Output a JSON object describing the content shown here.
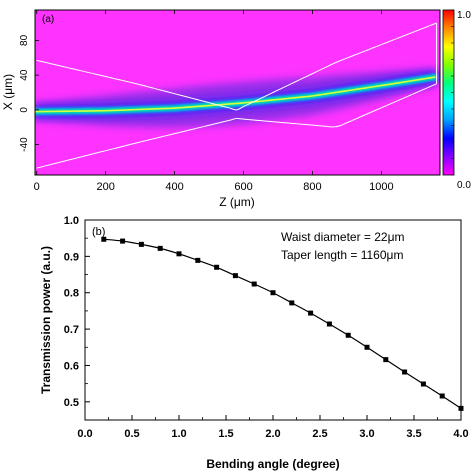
{
  "figure_colors": {
    "background": "#ffffff",
    "field_background": "#ff33ff",
    "axis": "#000000",
    "taper_outline": "#ffffff",
    "colorbar_stops": [
      "#ff00ff",
      "#8800ff",
      "#0000ff",
      "#00a0ff",
      "#00ffff",
      "#00ff80",
      "#80ff00",
      "#ffff00",
      "#ff8800",
      "#ff0000"
    ]
  },
  "chart_data": [
    {
      "panel_label": "(a)",
      "type": "heatmap",
      "title": "",
      "xlabel": "Z (μm)",
      "ylabel": "X (μm)",
      "xlim": [
        -5,
        1170
      ],
      "ylim": [
        -75,
        115
      ],
      "x_ticks": [
        "0",
        "200",
        "400",
        "600",
        "800",
        "1000"
      ],
      "x_tick_values": [
        0,
        200,
        400,
        600,
        800,
        1000
      ],
      "y_ticks": [
        "80",
        "40",
        "0",
        "-40"
      ],
      "y_tick_values": [
        80,
        40,
        0,
        -40
      ],
      "colorbar": {
        "min_label": "0.0",
        "max_label": "1.0",
        "range": [
          0.0,
          1.0
        ]
      },
      "beam_path": {
        "z": [
          0,
          200,
          400,
          600,
          800,
          1000,
          1160
        ],
        "x": [
          -2,
          -1,
          2,
          8,
          16,
          28,
          38
        ]
      },
      "taper_outline": {
        "upper": {
          "z": [
            0,
            290,
            580,
            870,
            1160
          ],
          "x": [
            57,
            30,
            0,
            55,
            100
          ]
        },
        "lower": {
          "z": [
            0,
            290,
            580,
            870,
            1160
          ],
          "x": [
            -67,
            -38,
            -10,
            -20,
            30
          ]
        }
      }
    },
    {
      "panel_label": "(b)",
      "type": "line",
      "title": "",
      "xlabel": "Bending angle (degree)",
      "ylabel": "Transmission power (a.u.)",
      "xlim": [
        0.0,
        4.0
      ],
      "ylim": [
        0.45,
        1.0
      ],
      "x_ticks": [
        "0.0",
        "0.5",
        "1.0",
        "1.5",
        "2.0",
        "2.5",
        "3.0",
        "3.5",
        "4.0"
      ],
      "x_tick_values": [
        0.0,
        0.5,
        1.0,
        1.5,
        2.0,
        2.5,
        3.0,
        3.5,
        4.0
      ],
      "y_ticks": [
        "0.5",
        "0.6",
        "0.7",
        "0.8",
        "0.9",
        "1.0"
      ],
      "y_tick_values": [
        0.5,
        0.6,
        0.7,
        0.8,
        0.9,
        1.0
      ],
      "annotations": [
        "Waist diameter = 22μm",
        "Taper length = 1160μm"
      ],
      "grid": false,
      "series": [
        {
          "marker": "square",
          "x": [
            0.2,
            0.4,
            0.6,
            0.8,
            1.0,
            1.2,
            1.4,
            1.6,
            1.8,
            2.0,
            2.2,
            2.4,
            2.6,
            2.8,
            3.0,
            3.2,
            3.4,
            3.6,
            3.8,
            4.0
          ],
          "y": [
            0.947,
            0.942,
            0.933,
            0.922,
            0.907,
            0.889,
            0.87,
            0.847,
            0.824,
            0.8,
            0.772,
            0.744,
            0.714,
            0.683,
            0.65,
            0.616,
            0.582,
            0.549,
            0.516,
            0.482
          ]
        }
      ]
    }
  ]
}
